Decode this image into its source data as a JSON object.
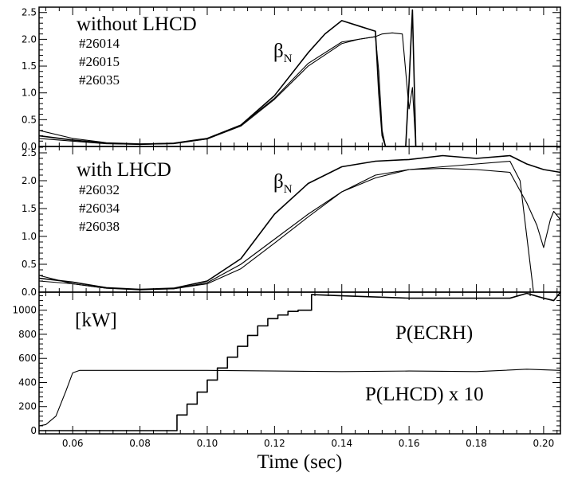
{
  "chart_data": {
    "type": "line",
    "xlabel": "Time (sec)",
    "xlim": [
      0.05,
      0.205
    ],
    "xticks": [
      "0.06",
      "0.08",
      "0.10",
      "0.12",
      "0.14",
      "0.16",
      "0.18",
      "0.20"
    ],
    "xtick_values": [
      0.06,
      0.08,
      0.1,
      0.12,
      0.14,
      0.16,
      0.18,
      0.2
    ],
    "panels": [
      {
        "title": "without LHCD",
        "quantity_label": "β",
        "quantity_sub": "N",
        "shots": [
          "#26014",
          "#26015",
          "#26035"
        ],
        "ylim": [
          0,
          2.6
        ],
        "yticks": [
          "0.0",
          "0.5",
          "1.0",
          "1.5",
          "2.0",
          "2.5"
        ],
        "ytick_values": [
          0,
          0.5,
          1.0,
          1.5,
          2.0,
          2.5
        ],
        "series": [
          {
            "x": [
              0.05,
              0.06,
              0.07,
              0.08,
              0.09,
              0.1,
              0.11,
              0.12,
              0.13,
              0.135,
              0.14,
              0.145,
              0.15,
              0.151,
              0.152,
              0.153,
              0.156,
              0.159,
              0.16,
              0.161,
              0.162,
              0.205
            ],
            "y": [
              0.2,
              0.12,
              0.06,
              0.04,
              0.06,
              0.15,
              0.4,
              0.95,
              1.75,
              2.1,
              2.35,
              2.25,
              2.15,
              1.0,
              0.2,
              0.0,
              0.0,
              0.0,
              1.2,
              2.55,
              0.0,
              0.0
            ]
          },
          {
            "x": [
              0.05,
              0.06,
              0.07,
              0.08,
              0.09,
              0.1,
              0.11,
              0.12,
              0.13,
              0.14,
              0.145,
              0.15,
              0.151,
              0.152,
              0.153,
              0.205
            ],
            "y": [
              0.15,
              0.1,
              0.05,
              0.04,
              0.05,
              0.14,
              0.4,
              0.9,
              1.55,
              1.95,
              2.0,
              2.05,
              1.4,
              0.3,
              0.0,
              0.0
            ]
          },
          {
            "x": [
              0.05,
              0.06,
              0.07,
              0.08,
              0.09,
              0.1,
              0.11,
              0.12,
              0.13,
              0.14,
              0.145,
              0.15,
              0.152,
              0.155,
              0.158,
              0.16,
              0.161,
              0.162,
              0.205
            ],
            "y": [
              0.3,
              0.15,
              0.07,
              0.05,
              0.06,
              0.14,
              0.38,
              0.88,
              1.5,
              1.92,
              2.0,
              2.05,
              2.1,
              2.12,
              2.1,
              0.7,
              1.1,
              0.0,
              0.0
            ]
          }
        ]
      },
      {
        "title": "with LHCD",
        "quantity_label": "β",
        "quantity_sub": "N",
        "shots": [
          "#26032",
          "#26034",
          "#26038"
        ],
        "ylim": [
          0,
          2.6
        ],
        "yticks": [
          "0.0",
          "0.5",
          "1.0",
          "1.5",
          "2.0",
          "2.5"
        ],
        "ytick_values": [
          0,
          0.5,
          1.0,
          1.5,
          2.0,
          2.5
        ],
        "series": [
          {
            "x": [
              0.05,
              0.06,
              0.07,
              0.08,
              0.09,
              0.1,
              0.11,
              0.12,
              0.13,
              0.14,
              0.15,
              0.16,
              0.17,
              0.18,
              0.19,
              0.195,
              0.2,
              0.205
            ],
            "y": [
              0.25,
              0.18,
              0.08,
              0.05,
              0.07,
              0.2,
              0.6,
              1.4,
              1.95,
              2.25,
              2.35,
              2.38,
              2.45,
              2.4,
              2.45,
              2.3,
              2.2,
              2.15
            ]
          },
          {
            "x": [
              0.05,
              0.06,
              0.07,
              0.08,
              0.09,
              0.1,
              0.11,
              0.12,
              0.13,
              0.14,
              0.15,
              0.16,
              0.17,
              0.18,
              0.19,
              0.193,
              0.195,
              0.197,
              0.205
            ],
            "y": [
              0.2,
              0.15,
              0.07,
              0.04,
              0.06,
              0.17,
              0.5,
              0.95,
              1.4,
              1.8,
              2.05,
              2.2,
              2.25,
              2.3,
              2.35,
              2.0,
              1.0,
              0.0,
              0.0
            ]
          },
          {
            "x": [
              0.05,
              0.06,
              0.07,
              0.08,
              0.09,
              0.1,
              0.11,
              0.12,
              0.13,
              0.14,
              0.15,
              0.16,
              0.17,
              0.18,
              0.19,
              0.195,
              0.198,
              0.2,
              0.202,
              0.203,
              0.205
            ],
            "y": [
              0.3,
              0.15,
              0.07,
              0.05,
              0.06,
              0.15,
              0.42,
              0.88,
              1.35,
              1.8,
              2.1,
              2.2,
              2.22,
              2.2,
              2.15,
              1.6,
              1.2,
              0.8,
              1.3,
              1.45,
              1.3
            ]
          }
        ]
      },
      {
        "title": "[kW]",
        "ylim": [
          0,
          1150
        ],
        "yticks": [
          "0",
          "200",
          "400",
          "600",
          "800",
          "1000"
        ],
        "ytick_values": [
          0,
          200,
          400,
          600,
          800,
          1000
        ],
        "series_labels": [
          "P(ECRH)",
          "P(LHCD)  x 10"
        ],
        "series": [
          {
            "name": "P(ECRH)",
            "x": [
              0.05,
              0.091,
              0.091,
              0.094,
              0.094,
              0.097,
              0.097,
              0.1,
              0.1,
              0.103,
              0.103,
              0.106,
              0.106,
              0.109,
              0.109,
              0.112,
              0.112,
              0.115,
              0.115,
              0.118,
              0.118,
              0.121,
              0.121,
              0.124,
              0.124,
              0.127,
              0.127,
              0.131,
              0.131,
              0.14,
              0.15,
              0.16,
              0.17,
              0.18,
              0.19,
              0.195,
              0.2,
              0.203,
              0.205
            ],
            "y": [
              0,
              0,
              130,
              130,
              220,
              220,
              320,
              320,
              420,
              420,
              520,
              520,
              610,
              610,
              700,
              700,
              790,
              790,
              870,
              870,
              930,
              930,
              960,
              960,
              990,
              990,
              1000,
              1000,
              1130,
              1120,
              1110,
              1100,
              1100,
              1100,
              1100,
              1140,
              1100,
              1080,
              1150
            ]
          },
          {
            "name": "P(LHCD)  x 10",
            "x": [
              0.05,
              0.052,
              0.055,
              0.058,
              0.06,
              0.062,
              0.08,
              0.1,
              0.12,
              0.14,
              0.16,
              0.18,
              0.195,
              0.205
            ],
            "y": [
              40,
              50,
              120,
              330,
              480,
              500,
              500,
              500,
              495,
              490,
              495,
              490,
              510,
              500
            ]
          }
        ]
      }
    ]
  }
}
